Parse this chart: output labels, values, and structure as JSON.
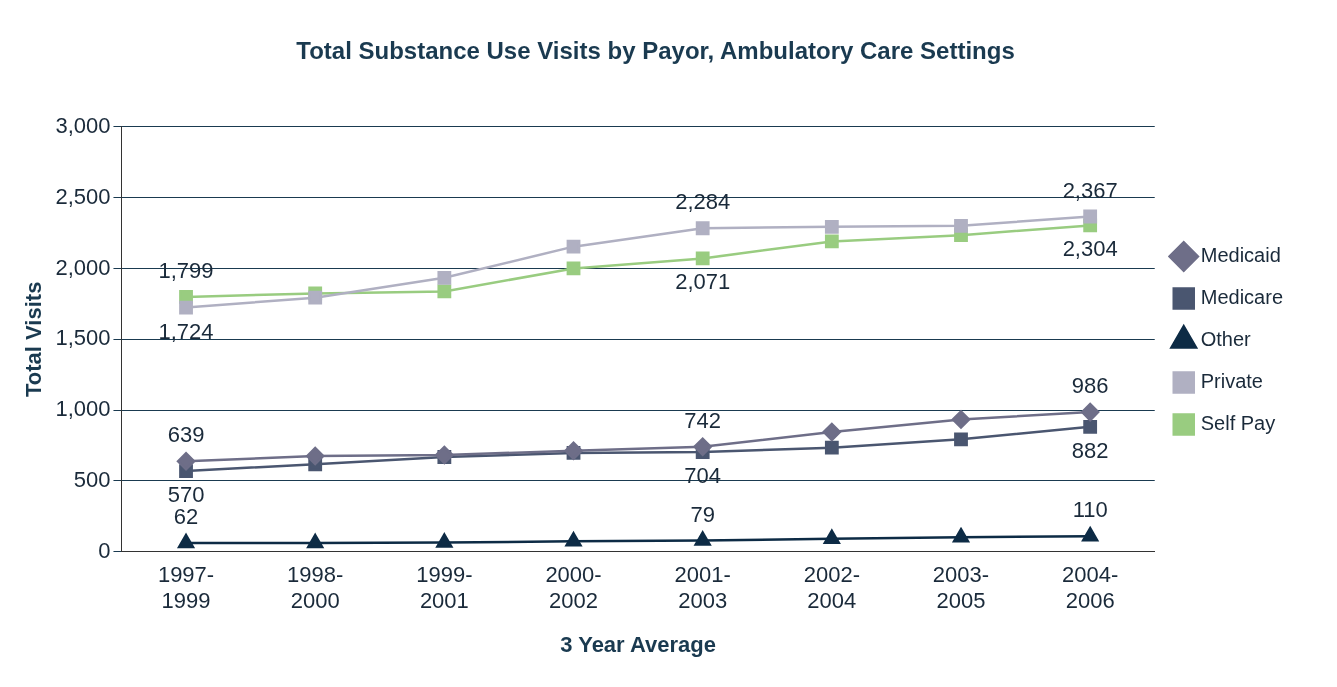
{
  "chart_data": {
    "type": "line",
    "title": "Total Substance Use Visits by Payor, Ambulatory Care Settings",
    "xlabel": "3 Year Average",
    "ylabel": "Total Visits",
    "categories": [
      "1997-\n1999",
      "1998-\n2000",
      "1999-\n2001",
      "2000-\n2002",
      "2001-\n2003",
      "2002-\n2004",
      "2003-\n2005",
      "2004-\n2006"
    ],
    "ylim": [
      0,
      3000
    ],
    "yticks": [
      {
        "value": 0,
        "label": "0"
      },
      {
        "value": 500,
        "label": "500"
      },
      {
        "value": 1000,
        "label": "1,000"
      },
      {
        "value": 1500,
        "label": "1,500"
      },
      {
        "value": 2000,
        "label": "2,000"
      },
      {
        "value": 2500,
        "label": "2,500"
      },
      {
        "value": 3000,
        "label": "3,000"
      }
    ],
    "grid": "y",
    "legend": "right",
    "line_style": "solid",
    "series": [
      {
        "name": "Medicaid",
        "color": "#6e6e88",
        "marker": "diamond",
        "values": [
          639,
          676,
          684,
          713,
          742,
          846,
          934,
          986
        ],
        "value_labels": [
          "639",
          null,
          null,
          null,
          "742",
          null,
          null,
          "986"
        ]
      },
      {
        "name": "Medicare",
        "color": "#4a5670",
        "marker": "square",
        "values": [
          570,
          618,
          669,
          698,
          704,
          735,
          794,
          882
        ],
        "value_labels": [
          "570",
          null,
          null,
          null,
          "704",
          null,
          null,
          "882"
        ]
      },
      {
        "name": "Other",
        "color": "#0d2b45",
        "marker": "triangle",
        "values": [
          62,
          62,
          65,
          74,
          79,
          92,
          103,
          110
        ],
        "value_labels": [
          "62",
          null,
          null,
          null,
          "79",
          null,
          null,
          "110"
        ]
      },
      {
        "name": "Private",
        "color": "#b0b0c2",
        "marker": "square",
        "values": [
          1724,
          1794,
          1934,
          2154,
          2284,
          2294,
          2301,
          2367
        ],
        "value_labels": [
          "1,724",
          null,
          null,
          null,
          "2,284",
          null,
          null,
          "2,367"
        ]
      },
      {
        "name": "Self Pay",
        "color": "#99cc80",
        "marker": "square",
        "values": [
          1799,
          1824,
          1838,
          2000,
          2071,
          2191,
          2235,
          2304
        ],
        "value_labels": [
          "1,799",
          null,
          null,
          null,
          "2,071",
          null,
          null,
          "2,304"
        ]
      }
    ]
  }
}
